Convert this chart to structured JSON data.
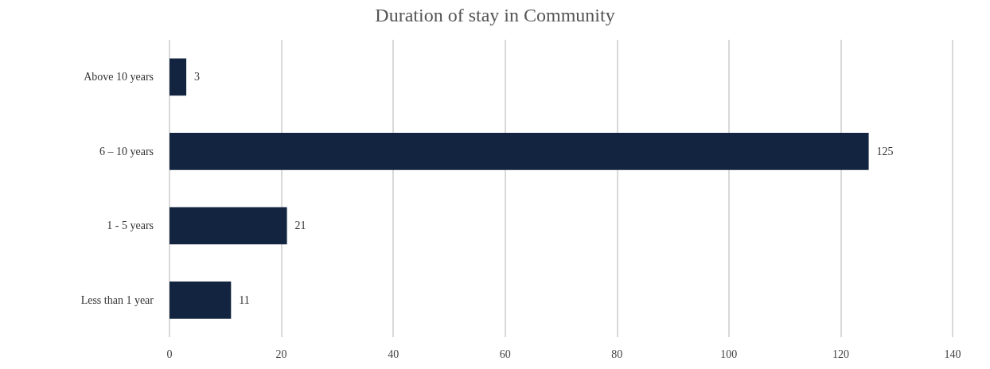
{
  "chart_data": {
    "type": "bar",
    "orientation": "horizontal",
    "title": "Duration of stay in Community",
    "categories": [
      "Above 10 years",
      "6 – 10 years",
      "1 - 5 years",
      "Less than 1 year"
    ],
    "values": [
      3,
      125,
      21,
      11
    ],
    "color": "#12243f",
    "xlim": [
      0,
      140
    ],
    "xticks": [
      0,
      20,
      40,
      60,
      80,
      100,
      120,
      140
    ],
    "grid": "x",
    "data_labels": true
  }
}
